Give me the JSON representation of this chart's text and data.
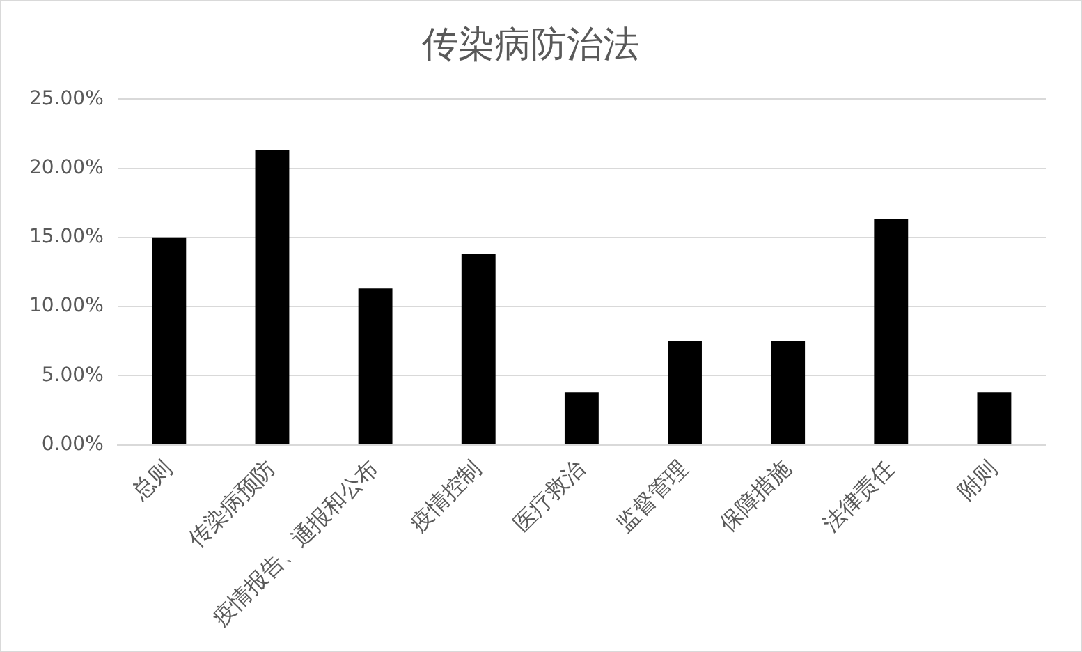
{
  "chart_data": {
    "type": "bar",
    "title": "传染病防治法",
    "categories": [
      "总则",
      "传染病预防",
      "疫情报告、通报和公布",
      "疫情控制",
      "医疗救治",
      "监督管理",
      "保障措施",
      "法律责任",
      "附则"
    ],
    "values": [
      15.0,
      21.3,
      11.3,
      13.8,
      3.8,
      7.5,
      7.5,
      16.3,
      3.8
    ],
    "color": "#000000",
    "ylim": [
      0,
      25
    ],
    "yticks": [
      {
        "value": 0,
        "label": "0.00%"
      },
      {
        "value": 5,
        "label": "5.00%"
      },
      {
        "value": 10,
        "label": "10.00%"
      },
      {
        "value": 15,
        "label": "15.00%"
      },
      {
        "value": 20,
        "label": "20.00%"
      },
      {
        "value": 25,
        "label": "25.00%"
      }
    ],
    "grid": "y",
    "legend": false
  }
}
